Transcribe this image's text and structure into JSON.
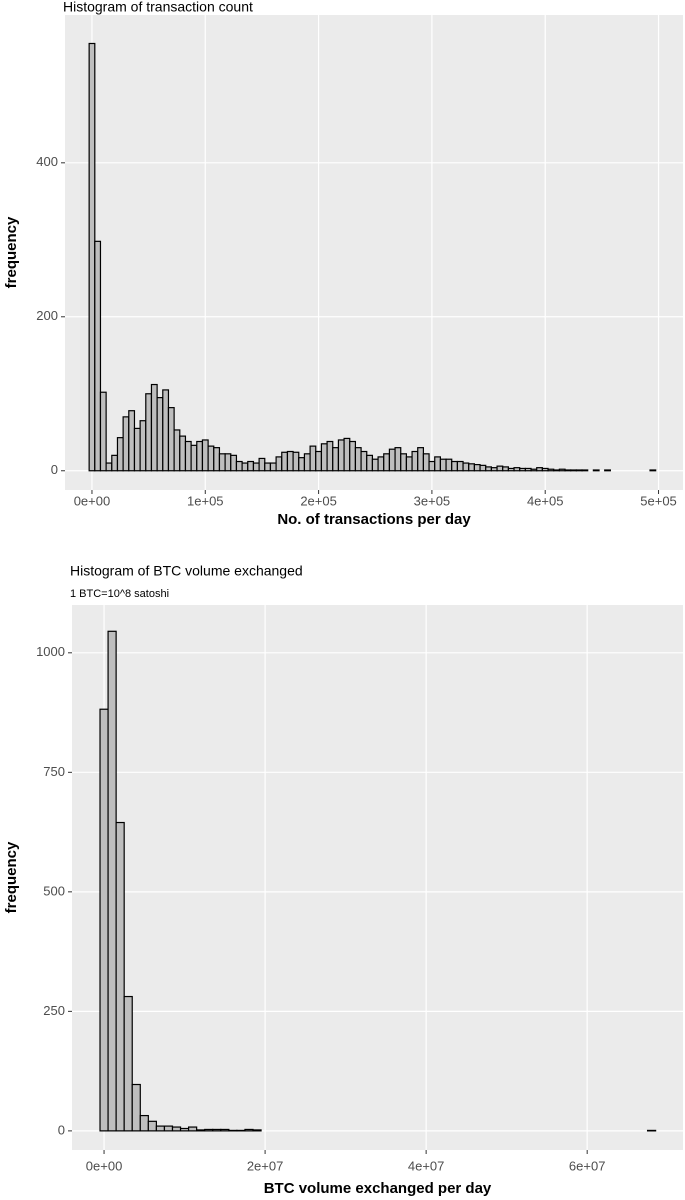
{
  "chart_data": [
    {
      "type": "histogram",
      "title": "Histogram of transaction count",
      "x_label": "No. of transactions per day",
      "y_label": "frequency",
      "color": "#bebebe",
      "grid": true,
      "bins": [
        -2500,
        2500,
        7500,
        12500,
        17500,
        22500,
        27500,
        32500,
        37500,
        42500,
        47500,
        52500,
        57500,
        62500,
        67500,
        72500,
        77500,
        82500,
        87500,
        92500,
        97500,
        102500,
        107500,
        112500,
        117500,
        122500,
        127500,
        132500,
        137500,
        142500,
        147500,
        152500,
        157500,
        162500,
        167500,
        172500,
        177500,
        182500,
        187500,
        192500,
        197500,
        202500,
        207500,
        212500,
        217500,
        222500,
        227500,
        232500,
        237500,
        242500,
        247500,
        252500,
        257500,
        262500,
        267500,
        272500,
        277500,
        282500,
        287500,
        292500,
        297500,
        302500,
        307500,
        312500,
        317500,
        322500,
        327500,
        332500,
        337500,
        342500,
        347500,
        352500,
        357500,
        362500,
        367500,
        372500,
        377500,
        382500,
        387500,
        392500,
        397500,
        402500,
        407500,
        412500,
        417500,
        422500,
        427500,
        432500,
        437500,
        442500,
        447500,
        452500,
        457500,
        462500,
        467500,
        472500,
        477500,
        482500,
        487500,
        492500,
        497500
      ],
      "values": [
        555,
        298,
        102,
        10,
        20,
        43,
        70,
        78,
        55,
        65,
        100,
        112,
        95,
        105,
        82,
        53,
        45,
        38,
        33,
        38,
        40,
        32,
        30,
        22,
        22,
        20,
        12,
        10,
        12,
        10,
        16,
        10,
        10,
        18,
        24,
        25,
        24,
        17,
        22,
        32,
        25,
        35,
        38,
        30,
        40,
        42,
        38,
        30,
        25,
        20,
        15,
        18,
        22,
        28,
        30,
        22,
        18,
        25,
        30,
        22,
        12,
        18,
        15,
        15,
        12,
        12,
        10,
        9,
        8,
        7,
        5,
        4,
        6,
        5,
        3,
        4,
        3,
        3,
        2,
        4,
        3,
        2,
        1,
        2,
        1,
        1,
        1,
        1,
        0,
        1,
        0,
        1,
        0,
        0,
        0,
        0,
        0,
        0,
        0,
        1
      ],
      "xlim": [
        -23800,
        521600
      ],
      "ylim": [
        -25,
        592
      ],
      "xticks": [
        {
          "value": 0,
          "label": "0e+00"
        },
        {
          "value": 100000,
          "label": "1e+05"
        },
        {
          "value": 200000,
          "label": "2e+05"
        },
        {
          "value": 300000,
          "label": "3e+05"
        },
        {
          "value": 400000,
          "label": "4e+05"
        },
        {
          "value": 500000,
          "label": "5e+05"
        }
      ],
      "yticks": [
        0,
        200,
        400
      ]
    },
    {
      "type": "histogram",
      "title": "Histogram of BTC volume exchanged",
      "subtitle": "1 BTC=10^8 satoshi",
      "x_label": "BTC volume exchanged per day",
      "y_label": "frequency",
      "color": "#bebebe",
      "grid": true,
      "bins": [
        -500000,
        500000,
        1500000,
        2500000,
        3500000,
        4500000,
        5500000,
        6500000,
        7500000,
        8500000,
        9500000,
        10500000,
        11500000,
        12500000,
        13500000,
        14500000,
        15500000,
        16500000,
        17500000,
        18500000,
        19500000,
        20500000,
        21500000,
        22500000,
        23500000,
        24500000,
        25500000,
        26500000,
        27500000,
        28500000,
        29500000,
        30500000,
        31500000,
        32500000,
        33500000,
        34500000,
        35500000,
        36500000,
        37500000,
        38500000,
        39500000,
        40500000,
        41500000,
        42500000,
        43500000,
        44500000,
        45500000,
        46500000,
        47500000,
        48500000,
        49500000,
        50500000,
        51500000,
        52500000,
        53500000,
        54500000,
        55500000,
        56500000,
        57500000,
        58500000,
        59500000,
        60500000,
        61500000,
        62500000,
        63500000,
        64500000,
        65500000,
        66500000,
        67500000,
        68500000
      ],
      "values": [
        882,
        1045,
        645,
        281,
        97,
        32,
        20,
        10,
        10,
        8,
        5,
        8,
        2,
        3,
        3,
        3,
        1,
        1,
        3,
        2,
        0,
        0,
        0,
        0,
        0,
        0,
        0,
        0,
        0,
        0,
        0,
        0,
        0,
        0,
        0,
        0,
        0,
        0,
        0,
        0,
        0,
        0,
        0,
        0,
        0,
        0,
        0,
        0,
        0,
        0,
        0,
        0,
        0,
        0,
        0,
        0,
        0,
        0,
        0,
        0,
        0,
        0,
        0,
        0,
        0,
        0,
        0,
        0,
        1
      ],
      "xlim": [
        -3980000,
        71900000
      ],
      "ylim": [
        -40,
        1100
      ],
      "xticks": [
        {
          "value": 0,
          "label": "0e+00"
        },
        {
          "value": 20000000,
          "label": "2e+07"
        },
        {
          "value": 40000000,
          "label": "4e+07"
        },
        {
          "value": 60000000,
          "label": "6e+07"
        }
      ],
      "yticks": [
        0,
        250,
        500,
        750,
        1000
      ]
    }
  ]
}
